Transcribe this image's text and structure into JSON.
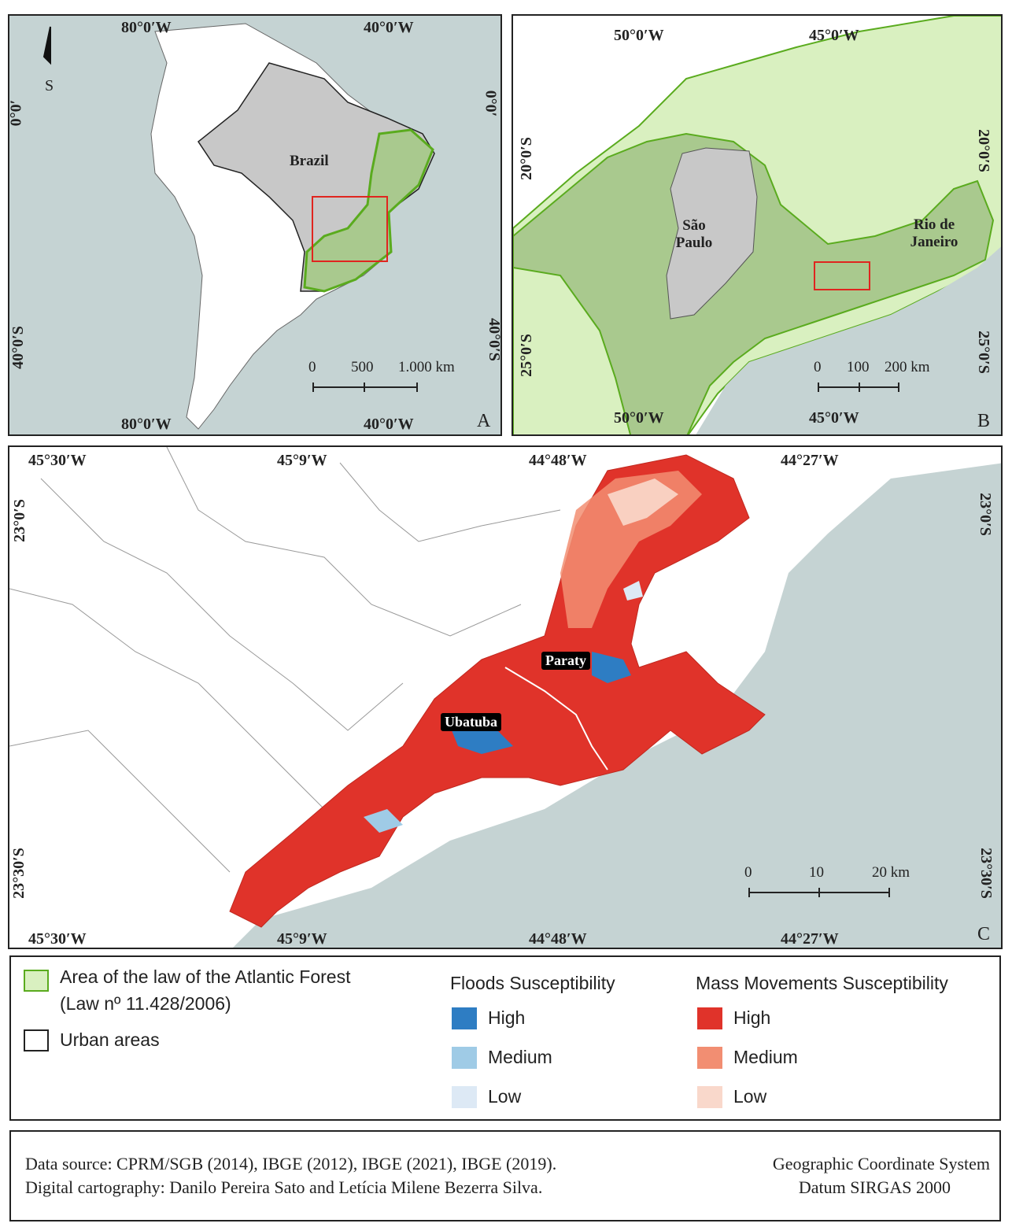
{
  "panel_a": {
    "letter": "A",
    "north_label": "S",
    "top_coords": [
      "80°0′W",
      "40°0′W"
    ],
    "bottom_coords": [
      "80°0′W",
      "40°0′W"
    ],
    "left_coords": [
      "0°0′",
      "40°0′S"
    ],
    "right_coords": [
      "0°0′",
      "40°0′S"
    ],
    "country_label": "Brazil",
    "scale": [
      "0",
      "500",
      "1.000 km"
    ]
  },
  "panel_b": {
    "letter": "B",
    "top_coords": [
      "50°0′W",
      "45°0′W"
    ],
    "bottom_coords": [
      "50°0′W",
      "45°0′W"
    ],
    "left_coords": [
      "20°0′S",
      "25°0′S"
    ],
    "right_coords": [
      "20°0′S",
      "25°0′S"
    ],
    "state_labels": [
      "São Paulo",
      "Rio de Janeiro"
    ],
    "scale": [
      "0",
      "100",
      "200 km"
    ]
  },
  "panel_c": {
    "letter": "C",
    "top_coords": [
      "45°30′W",
      "45°9′W",
      "44°48′W",
      "44°27′W"
    ],
    "bottom_coords": [
      "45°30′W",
      "45°9′W",
      "44°48′W",
      "44°27′W"
    ],
    "left_coords": [
      "23°0′S",
      "23°30′S"
    ],
    "right_coords": [
      "23°0′S",
      "23°30′S"
    ],
    "city_labels": [
      "Paraty",
      "Ubatuba"
    ],
    "scale": [
      "0",
      "10",
      "20 km"
    ]
  },
  "legend": {
    "atlantic_forest": "Area of the law of the Atlantic Forest",
    "atlantic_forest_law": "(Law nº 11.428/2006)",
    "urban_areas": "Urban areas",
    "floods_title": "Floods Susceptibility",
    "mass_title": "Mass Movements Susceptibility",
    "levels": [
      "High",
      "Medium",
      "Low"
    ],
    "colors": {
      "forest_fill": "#d9f0c0",
      "forest_border": "#5aab1e",
      "flood_high": "#2e7dc3",
      "flood_medium": "#9fcbe6",
      "flood_low": "#dde9f5",
      "mass_high": "#e0332a",
      "mass_medium": "#f28e72",
      "mass_low": "#f9d8cb"
    }
  },
  "source": {
    "line1": "Data source: CPRM/SGB (2014), IBGE (2012), IBGE (2021), IBGE (2019).",
    "line2": "Digital cartography: Danilo Pereira Sato and Letícia Milene Bezerra Silva.",
    "crs1": "Geographic Coordinate System",
    "crs2": "Datum SIRGAS 2000"
  }
}
